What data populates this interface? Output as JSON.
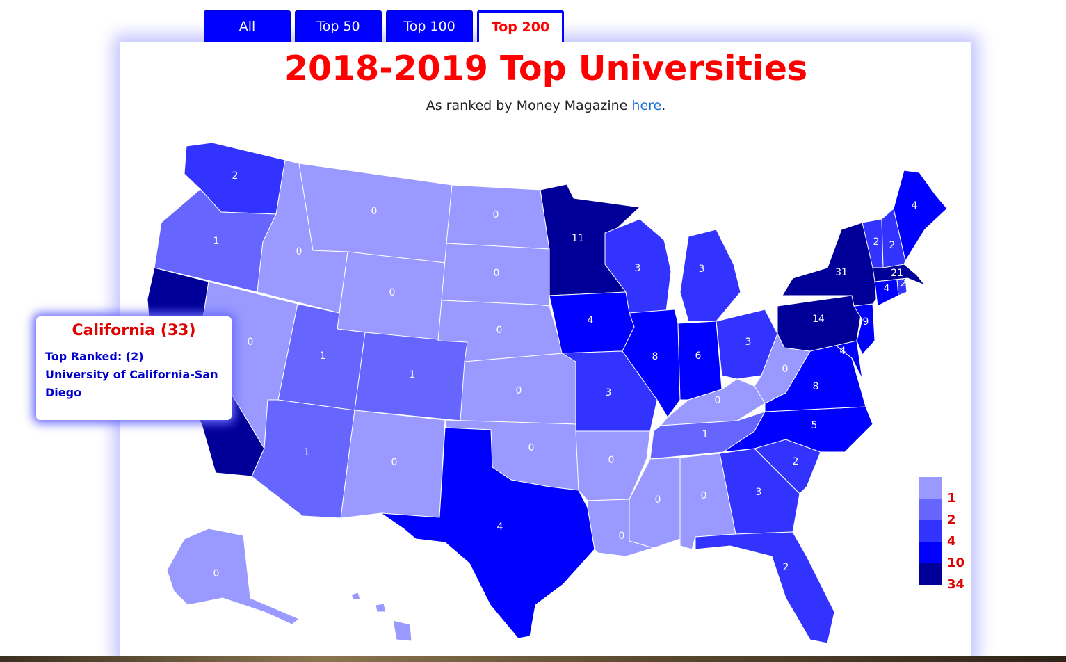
{
  "tabs": [
    {
      "label": "All",
      "active": false
    },
    {
      "label": "Top 50",
      "active": false
    },
    {
      "label": "Top 100",
      "active": false
    },
    {
      "label": "Top 200",
      "active": true
    }
  ],
  "title": "2018-2019 Top Universities",
  "subtitle": {
    "text": "As ranked by Money Magazine ",
    "link_text": "here",
    "suffix": "."
  },
  "colors": {
    "c1": "#9999ff",
    "c2": "#6666ff",
    "c4": "#3333ff",
    "c10": "#0000ff",
    "c34": "#000099",
    "accent_red": "#ff0000",
    "tab_blue": "#0000ff"
  },
  "states": {
    "WA": "2",
    "OR": "1",
    "CA": "33",
    "ID": "0",
    "NV": "0",
    "MT": "0",
    "WY": "0",
    "UT": "1",
    "AZ": "1",
    "CO": "1",
    "NM": "0",
    "ND": "0",
    "SD": "0",
    "NE": "0",
    "KS": "0",
    "OK": "0",
    "TX": "4",
    "MN": "11",
    "IA": "4",
    "MO": "3",
    "AR": "0",
    "LA": "0",
    "WI": "3",
    "IL": "8",
    "MI": "3",
    "IN": "6",
    "OH": "3",
    "KY": "0",
    "TN": "1",
    "MS": "0",
    "AL": "0",
    "GA": "3",
    "FL": "2",
    "SC": "2",
    "NC": "5",
    "VA": "8",
    "WV": "0",
    "PA": "14",
    "NY": "31",
    "NJ": "9",
    "MD": "4",
    "CT": "4",
    "MA": "21",
    "RI": "2",
    "VT": "2",
    "NH": "2",
    "ME": "4",
    "AK": "0"
  },
  "tooltip": {
    "title": "California (33)",
    "top_ranked_label": "Top Ranked: (2)",
    "university_line1": "University of California-San",
    "university_line2": "Diego"
  },
  "legend": [
    {
      "label": "1",
      "color": "#9999ff"
    },
    {
      "label": "2",
      "color": "#6666ff"
    },
    {
      "label": "4",
      "color": "#3333ff"
    },
    {
      "label": "10",
      "color": "#0000ff"
    },
    {
      "label": "34",
      "color": "#000099"
    }
  ]
}
